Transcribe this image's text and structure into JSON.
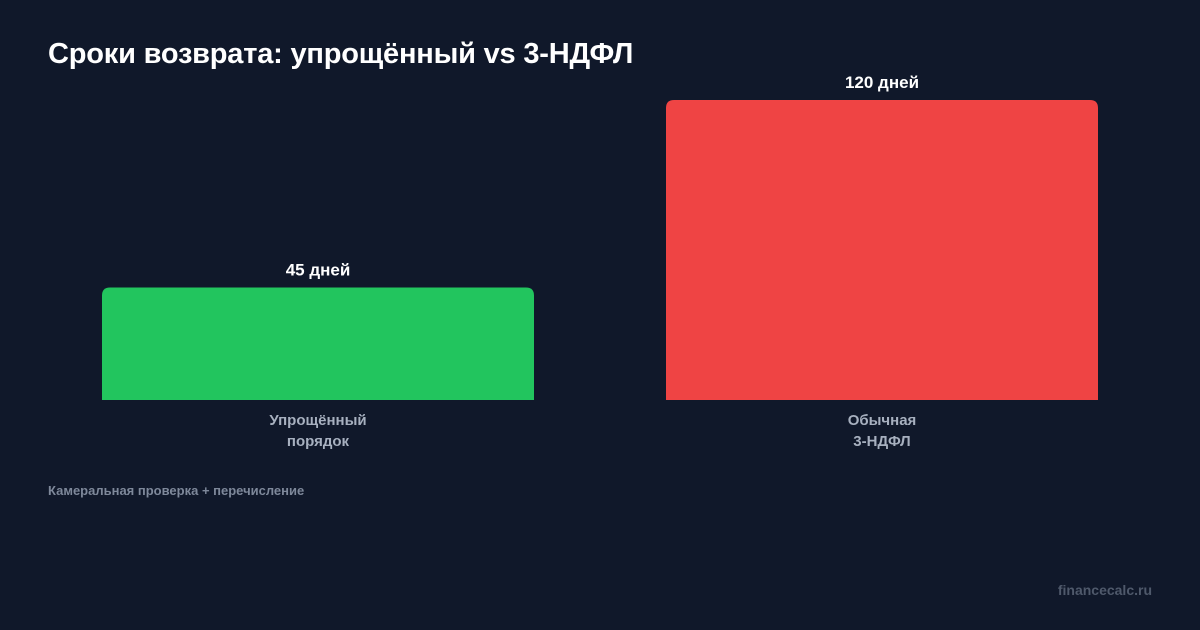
{
  "chart_data": {
    "type": "bar",
    "title": "Сроки возврата: упрощённый vs 3-НДФЛ",
    "categories": [
      [
        "Упрощённый",
        "порядок"
      ],
      [
        "Обычная",
        "3-НДФЛ"
      ]
    ],
    "values": [
      45,
      120
    ],
    "value_labels": [
      "45 дней",
      "120 дней"
    ],
    "bar_colors": [
      "#22c55e",
      "#ef4444"
    ],
    "note": "Камеральная проверка + перечисление",
    "ylim": [
      0,
      120
    ],
    "grid": false,
    "legend": "none"
  },
  "footer": {
    "source": "financecalc.ru"
  },
  "colors": {
    "background": "#10182a",
    "text": "#ffffff",
    "category_label": "#a7b0bf"
  }
}
